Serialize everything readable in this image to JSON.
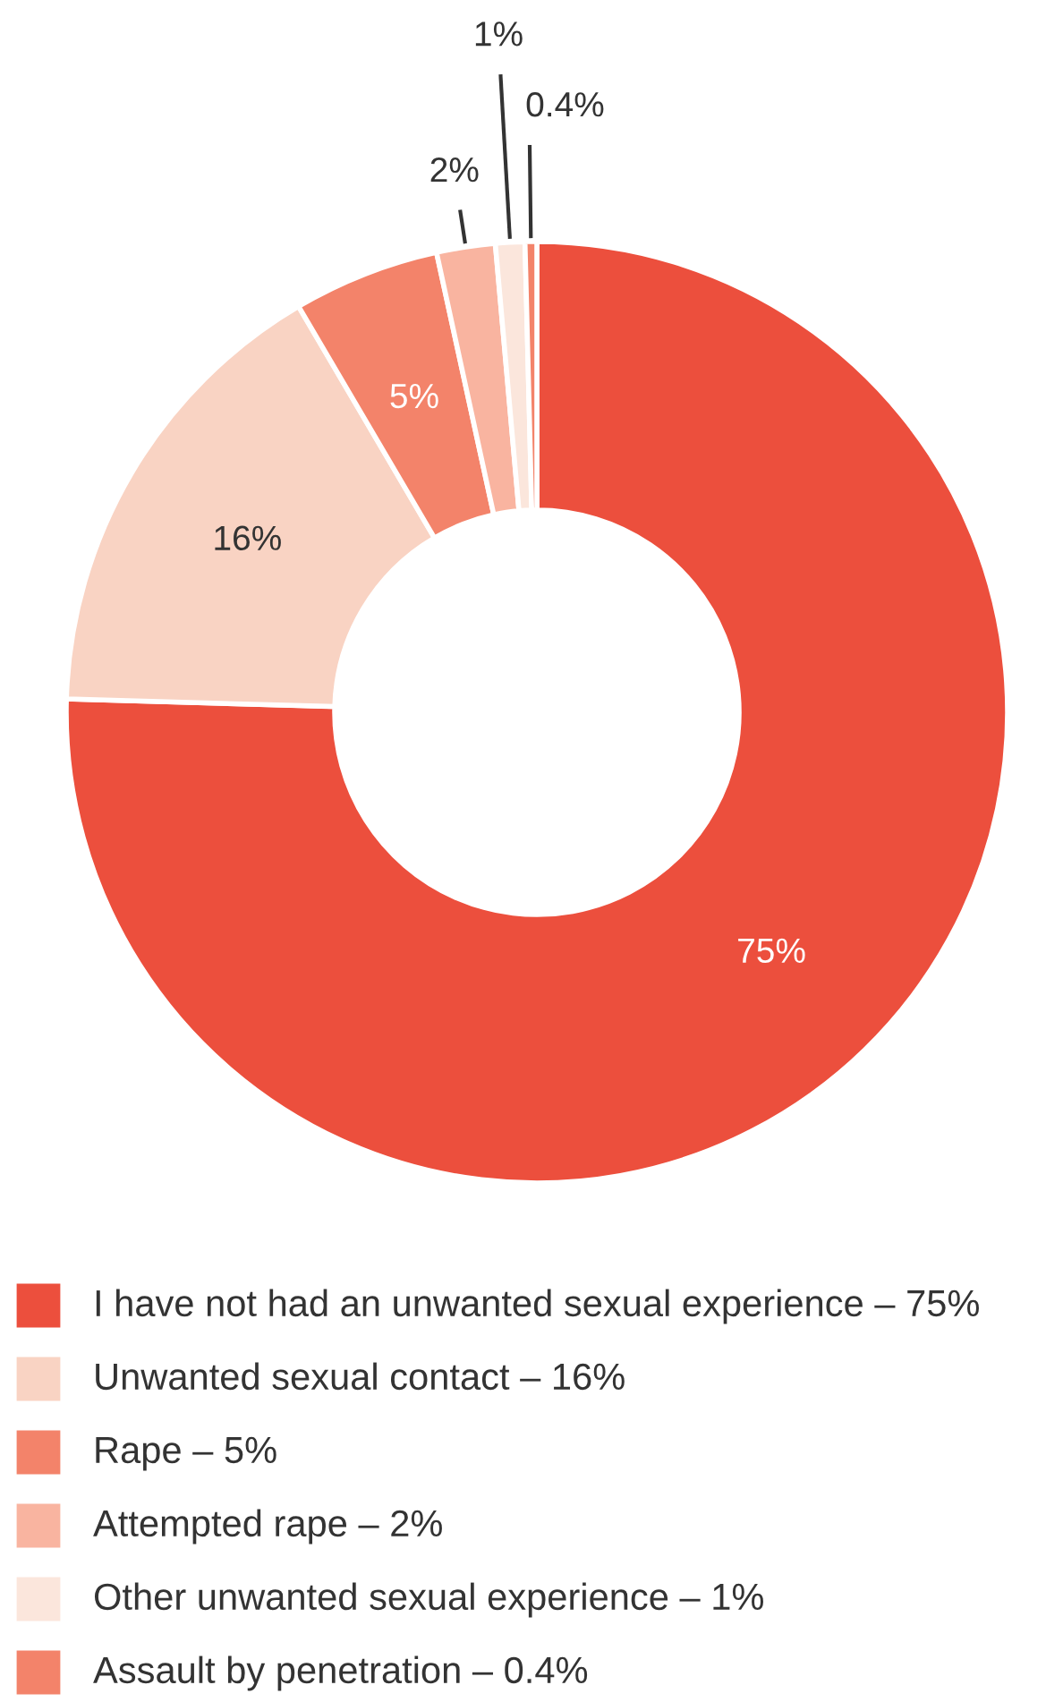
{
  "chart_data": {
    "type": "donut",
    "categories": [
      "I have not had an unwanted sexual experience – 75%",
      "Unwanted sexual contact – 16%",
      "Rape – 5%",
      "Attempted rape – 2%",
      "Other unwanted sexual experience – 1%",
      "Assault by penetration – 0.4%"
    ],
    "values": [
      75,
      16,
      5,
      2,
      1,
      0.4
    ],
    "colors": [
      "#ec4f3d",
      "#f9d3c3",
      "#f3836a",
      "#f9b4a0",
      "#fbe6dc",
      "#f3836a"
    ],
    "value_labels": [
      "75%",
      "16%",
      "5%",
      "2%",
      "1%",
      "0.4%"
    ],
    "legend": "bottom"
  }
}
